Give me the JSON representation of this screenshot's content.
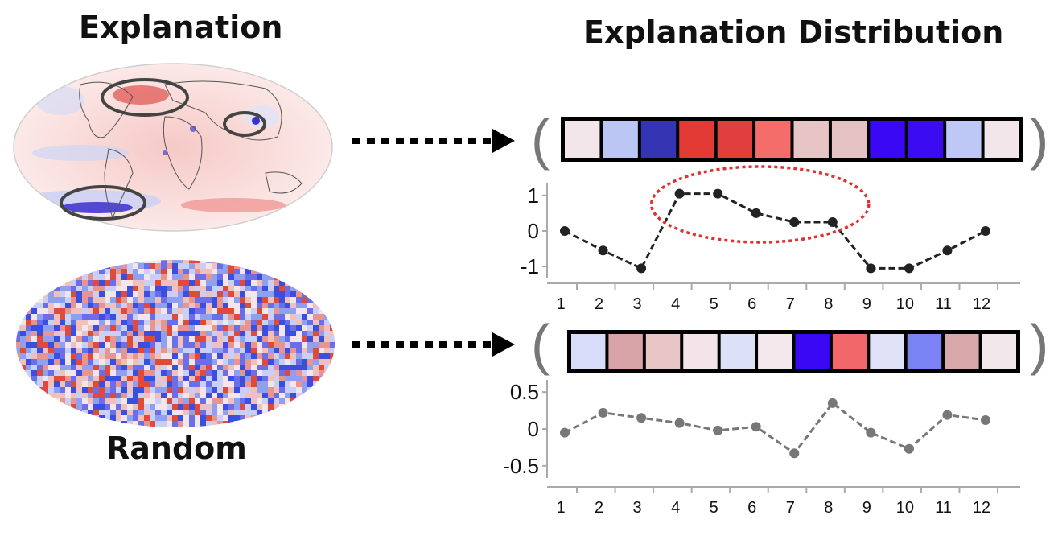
{
  "headings": {
    "explanation": "Explanation",
    "distribution": "Explanation Distribution",
    "random": "Random"
  },
  "vectors": {
    "explanation_cells": [
      "#f3e6ea",
      "#bcc6f4",
      "#3535b4",
      "#e43a36",
      "#e13f3d",
      "#f46d6a",
      "#e7c4c5",
      "#e4c2c3",
      "#3a08f4",
      "#3b0bf2",
      "#bdc8f6",
      "#f2e6ea"
    ],
    "random_cells": [
      "#d8dcf8",
      "#d8a4a8",
      "#e8c6c8",
      "#f2e4e8",
      "#dde1f8",
      "#f4e8ec",
      "#3a08f4",
      "#f2676a",
      "#e0e2f8",
      "#7a82f4",
      "#d9a8ab",
      "#f2e8ec"
    ]
  },
  "chart_data": [
    {
      "type": "line",
      "x": [
        1,
        2,
        3,
        4,
        5,
        6,
        7,
        8,
        9,
        10,
        11,
        12
      ],
      "y": [
        0,
        -0.55,
        -1.05,
        1.05,
        1.05,
        0.5,
        0.25,
        0.25,
        -1.05,
        -1.05,
        -0.55,
        0
      ],
      "ylim": [
        -1.2,
        1.2
      ],
      "yticks": [
        "1",
        "0",
        "-1"
      ],
      "xticks": [
        "1",
        "2",
        "3",
        "4",
        "5",
        "6",
        "7",
        "8",
        "9",
        "10",
        "11",
        "12"
      ],
      "highlight": [
        4,
        8
      ]
    },
    {
      "type": "line",
      "x": [
        1,
        2,
        3,
        4,
        5,
        6,
        7,
        8,
        9,
        10,
        11,
        12
      ],
      "y": [
        -0.05,
        0.22,
        0.15,
        0.08,
        -0.02,
        0.03,
        -0.33,
        0.35,
        -0.05,
        -0.27,
        0.19,
        0.12
      ],
      "ylim": [
        -0.6,
        0.6
      ],
      "yticks": [
        "0.5",
        "0",
        "-0.5"
      ],
      "xticks": [
        "1",
        "2",
        "3",
        "4",
        "5",
        "6",
        "7",
        "8",
        "9",
        "10",
        "11",
        "12"
      ]
    }
  ]
}
